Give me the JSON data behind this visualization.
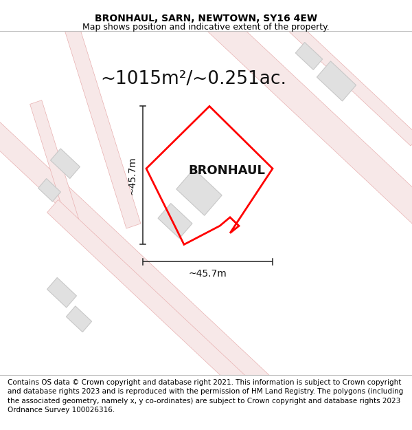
{
  "title": "BRONHAUL, SARN, NEWTOWN, SY16 4EW",
  "subtitle": "Map shows position and indicative extent of the property.",
  "area_label": "~1015m²/~0.251ac.",
  "property_label": "BRONHAUL",
  "dim_h": "~45.7m",
  "dim_w": "~45.7m",
  "footer": "Contains OS data © Crown copyright and database right 2021. This information is subject to Crown copyright and database rights 2023 and is reproduced with the permission of HM Land Registry. The polygons (including the associated geometry, namely x, y co-ordinates) are subject to Crown copyright and database rights 2023 Ordnance Survey 100026316.",
  "bg_color": "#ffffff",
  "map_bg": "#ffffff",
  "road_color": "#f7e8e8",
  "road_outline": "#e8b0b0",
  "building_fill": "#e0e0e0",
  "building_outline": "#c8c8c8",
  "property_color": "#ff0000",
  "dim_line_color": "#222222",
  "title_color": "#000000",
  "footer_color": "#000000",
  "footer_fontsize": 7.5,
  "title_fontsize": 10,
  "subtitle_fontsize": 9,
  "area_fontsize": 19,
  "property_fontsize": 13,
  "dim_fontsize": 10
}
